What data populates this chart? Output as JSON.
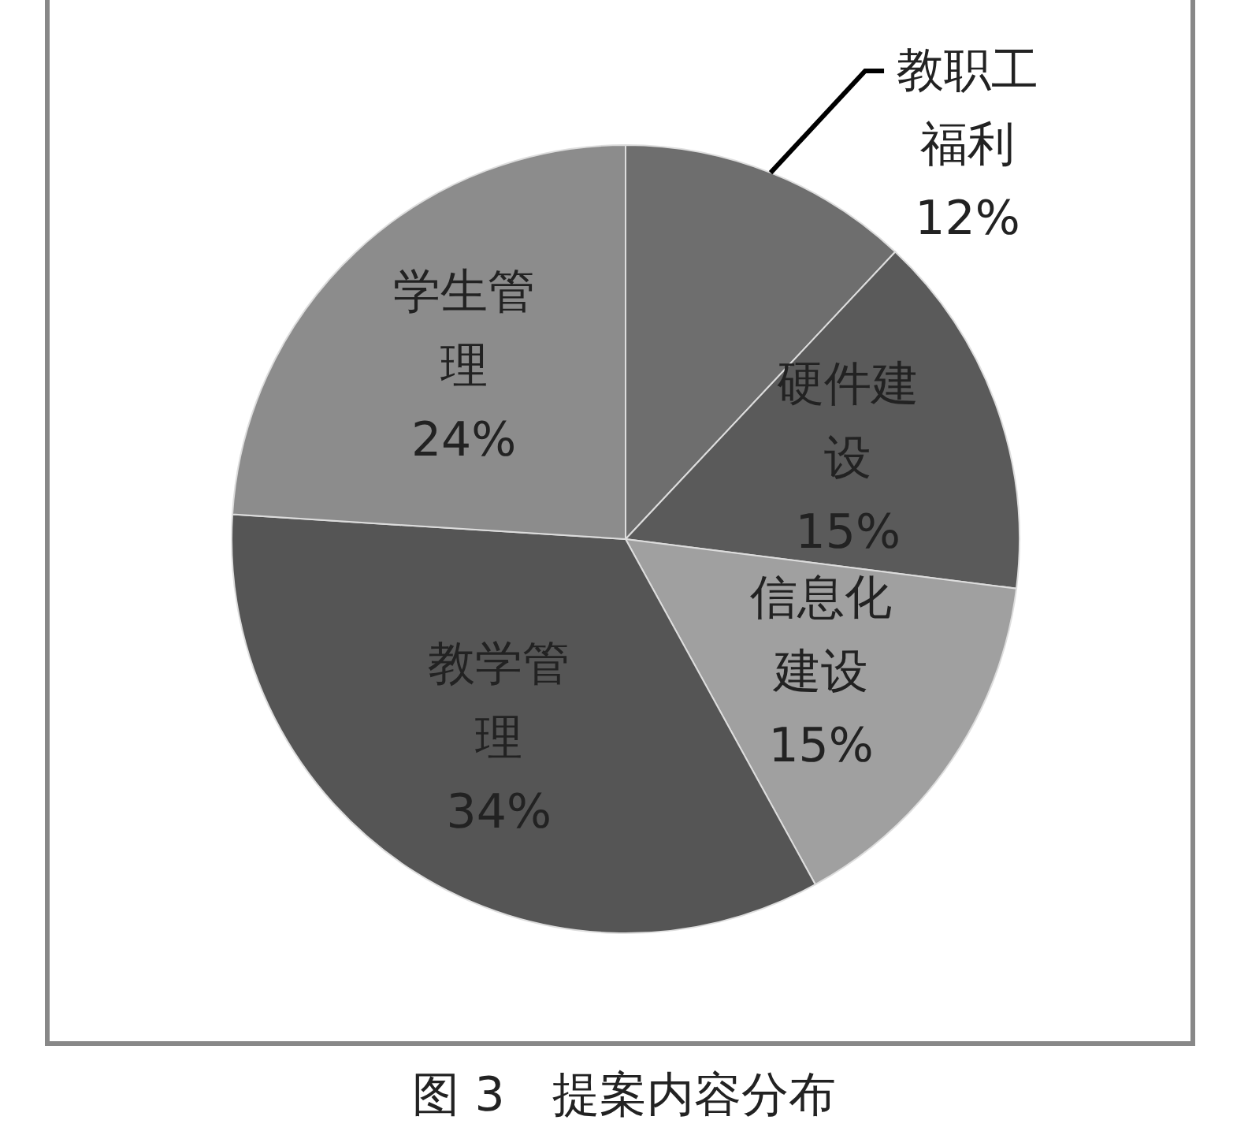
{
  "chart_data": {
    "type": "pie",
    "title": "图 3　提案内容分布",
    "categories": [
      "教职工福利",
      "硬件建设",
      "信息化建设",
      "教学管理",
      "学生管理"
    ],
    "values": [
      12,
      15,
      15,
      34,
      24
    ],
    "value_labels": [
      "12%",
      "15%",
      "15%",
      "34%",
      "24%"
    ],
    "colors": [
      "#6e6e6e",
      "#5a5a5a",
      "#a0a0a0",
      "#555555",
      "#8c8c8c"
    ]
  }
}
